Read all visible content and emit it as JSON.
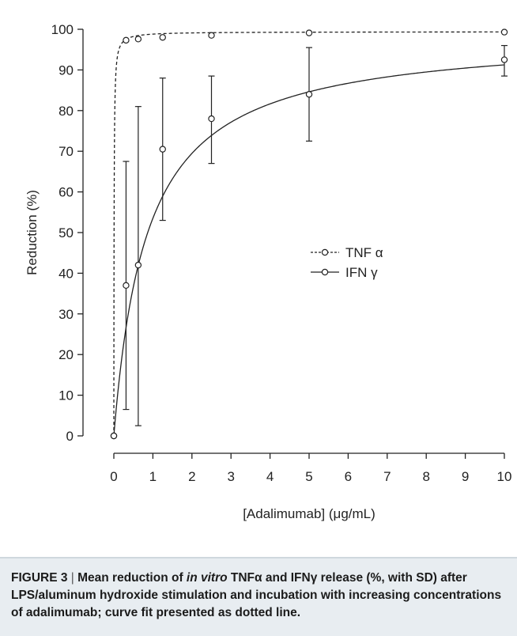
{
  "chart_data": {
    "type": "scatter",
    "xlabel": "[Adalimumab] (μg/mL)",
    "ylabel": "Reduction (%)",
    "xlim": [
      0,
      10
    ],
    "ylim": [
      0,
      100
    ],
    "x_ticks": [
      0,
      1,
      2,
      3,
      4,
      5,
      6,
      7,
      8,
      9,
      10
    ],
    "y_ticks": [
      0,
      10,
      20,
      30,
      40,
      50,
      60,
      70,
      80,
      90,
      100
    ],
    "legend_position": "center-right",
    "grid": false,
    "series": [
      {
        "name": "TNF α",
        "line_style": "dashed",
        "points": [
          {
            "x": 0,
            "y": 0
          },
          {
            "x": 0.3125,
            "y": 97.3
          },
          {
            "x": 0.625,
            "y": 97.6
          },
          {
            "x": 1.25,
            "y": 98.0
          },
          {
            "x": 2.5,
            "y": 98.5
          },
          {
            "x": 5,
            "y": 99.1
          },
          {
            "x": 10,
            "y": 99.3
          }
        ],
        "fit": {
          "model": "emax",
          "emax": 99.4,
          "ec50": 0.006
        }
      },
      {
        "name": "IFN γ",
        "line_style": "solid",
        "points": [
          {
            "x": 0,
            "y": 0
          },
          {
            "x": 0.3125,
            "y": 37.0,
            "sd_low": 6.5,
            "sd_high": 67.5
          },
          {
            "x": 0.625,
            "y": 42.0,
            "sd_low": 2.5,
            "sd_high": 81.0
          },
          {
            "x": 1.25,
            "y": 70.5,
            "sd_low": 53.0,
            "sd_high": 88.0
          },
          {
            "x": 2.5,
            "y": 78.0,
            "sd_low": 67.0,
            "sd_high": 88.5
          },
          {
            "x": 5,
            "y": 84.0,
            "sd_low": 72.5,
            "sd_high": 95.5
          },
          {
            "x": 10,
            "y": 92.5,
            "sd_low": 88.5,
            "sd_high": 96.0
          }
        ],
        "fit": {
          "model": "emax",
          "emax": 99.0,
          "ec50": 0.85
        }
      }
    ],
    "colors": {
      "axis": "#222222",
      "series": "#222222"
    }
  },
  "caption": {
    "label": "FIGURE 3",
    "text_pre": "Mean reduction of ",
    "text_italic": "in vitro",
    "text_post": " TNFα and IFNγ release (%, with SD) after LPS/aluminum hydroxide stimulation and incubation with increasing concentrations of adalimumab; curve fit presented as dotted line",
    "end": "."
  }
}
